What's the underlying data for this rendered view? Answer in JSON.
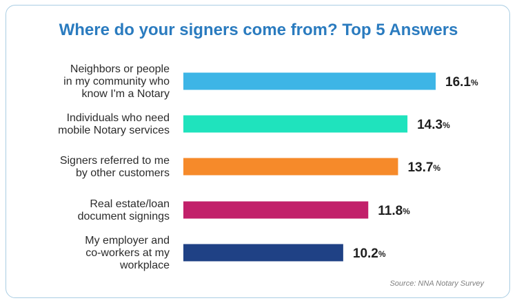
{
  "chart_data": {
    "type": "bar",
    "orientation": "horizontal",
    "title": "Where do your signers come from? Top 5 Answers",
    "categories": [
      [
        "Neighbors or people",
        "in my community who",
        "know I'm a Notary"
      ],
      [
        "Individuals who need",
        "mobile Notary services"
      ],
      [
        "Signers referred to me",
        "by other customers"
      ],
      [
        "Real estate/loan",
        "document signings"
      ],
      [
        "My employer and",
        "co-workers at my",
        "workplace"
      ]
    ],
    "values": [
      16.1,
      14.3,
      13.7,
      11.8,
      10.2
    ],
    "value_suffix": "%",
    "colors": [
      "#3db5e6",
      "#1fe3bd",
      "#f68a2a",
      "#c2206a",
      "#1f4185"
    ],
    "xlim": [
      0,
      16.1
    ],
    "grid": false,
    "legend": "none"
  },
  "source": "Source: NNA Notary Survey"
}
